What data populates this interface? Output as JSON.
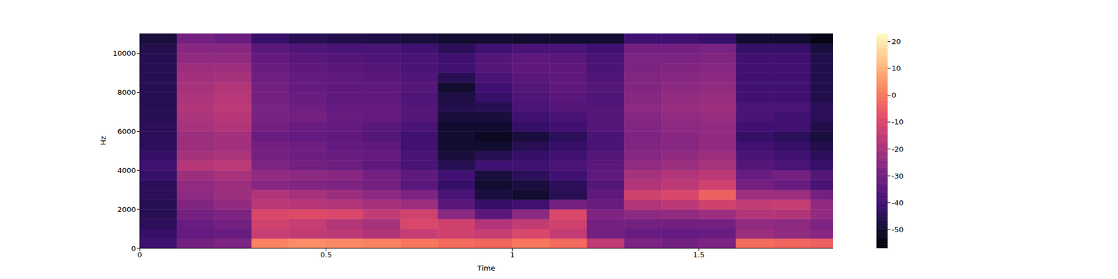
{
  "chart_data": {
    "type": "heatmap",
    "x_label": "Time",
    "y_label": "Hz",
    "xlim": [
      0,
      1.86
    ],
    "xticks": [
      0,
      0.5,
      1,
      1.5
    ],
    "ylim": [
      0,
      11025
    ],
    "yticks": [
      0,
      2000,
      4000,
      6000,
      8000,
      10000
    ],
    "color": "magma",
    "x_bins": [
      0,
      0.1,
      0.2,
      0.3,
      0.4,
      0.5,
      0.6,
      0.7,
      0.8,
      0.9,
      1.0,
      1.1,
      1.2,
      1.3,
      1.4,
      1.5,
      1.6,
      1.7,
      1.8,
      1.9
    ],
    "y_bins": [
      0,
      500,
      1000,
      1500,
      2000,
      2500,
      3000,
      3500,
      4000,
      4500,
      5000,
      5500,
      6000,
      6500,
      7000,
      7500,
      8000,
      8500,
      9000,
      9500,
      10000,
      10500,
      11025
    ],
    "cells": [
      [
        -40,
        -42,
        -44,
        -45,
        -45,
        -44,
        -44,
        -42,
        -40,
        -42,
        -44,
        -44,
        -44,
        -45,
        -45,
        -45,
        -45,
        -45,
        -45,
        -45,
        -46,
        -48
      ],
      [
        -30,
        -33,
        -32,
        -30,
        -27,
        -25,
        -24,
        -22,
        -17,
        -20,
        -22,
        -22,
        -20,
        -19,
        -18,
        -19,
        -20,
        -21,
        -22,
        -24,
        -26,
        -30
      ],
      [
        -28,
        -32,
        -30,
        -28,
        -24,
        -22,
        -22,
        -20,
        -16,
        -19,
        -21,
        -21,
        -18,
        -17,
        -16,
        -17,
        -18,
        -20,
        -22,
        -24,
        -26,
        -32
      ],
      [
        2,
        -14,
        -12,
        -10,
        -16,
        -18,
        -26,
        -24,
        -28,
        -30,
        -30,
        -32,
        -30,
        -29,
        -29,
        -30,
        -30,
        -31,
        -32,
        -33,
        -35,
        -42
      ],
      [
        4,
        -15,
        -14,
        -9,
        -17,
        -20,
        -27,
        -25,
        -30,
        -31,
        -31,
        -33,
        -32,
        -30,
        -31,
        -32,
        -33,
        -33,
        -34,
        -35,
        -37,
        -45
      ],
      [
        3,
        -16,
        -18,
        -10,
        -18,
        -22,
        -28,
        -26,
        -31,
        -32,
        -33,
        -34,
        -33,
        -32,
        -33,
        -34,
        -34,
        -34,
        -35,
        -36,
        -38,
        -46
      ],
      [
        2,
        -18,
        -20,
        -15,
        -20,
        -25,
        -30,
        -30,
        -34,
        -33,
        -34,
        -36,
        -35,
        -33,
        -33,
        -34,
        -34,
        -35,
        -36,
        -37,
        -38,
        -47
      ],
      [
        0,
        -14,
        -10,
        -12,
        -22,
        -28,
        -35,
        -34,
        -38,
        -38,
        -40,
        -40,
        -38,
        -36,
        -36,
        -37,
        -36,
        -37,
        -38,
        -38,
        -40,
        -48
      ],
      [
        -2,
        -12,
        -12,
        -25,
        -35,
        -38,
        -42,
        -40,
        -45,
        -48,
        -50,
        -50,
        -50,
        -48,
        -46,
        -47,
        -50,
        -45,
        -40,
        -40,
        -44,
        -50
      ],
      [
        -3,
        -14,
        -18,
        -35,
        -42,
        -48,
        -50,
        -48,
        -40,
        -45,
        -50,
        -52,
        -50,
        -48,
        -45,
        -42,
        -40,
        -38,
        -36,
        -36,
        -40,
        -50
      ],
      [
        0,
        -10,
        -15,
        -25,
        -40,
        -50,
        -48,
        -44,
        -40,
        -42,
        -45,
        -48,
        -42,
        -40,
        -38,
        -37,
        -36,
        -35,
        -34,
        -34,
        -38,
        -50
      ],
      [
        -2,
        -15,
        -12,
        -10,
        -30,
        -45,
        -44,
        -40,
        -38,
        -40,
        -42,
        -44,
        -40,
        -38,
        -36,
        -35,
        -34,
        -34,
        -34,
        -35,
        -38,
        -50
      ],
      [
        -15,
        -30,
        -30,
        -28,
        -32,
        -34,
        -36,
        -34,
        -35,
        -36,
        -38,
        -38,
        -36,
        -36,
        -36,
        -37,
        -36,
        -37,
        -38,
        -38,
        -40,
        -50
      ],
      [
        -28,
        -32,
        -30,
        -25,
        -18,
        -12,
        -18,
        -20,
        -24,
        -26,
        -27,
        -28,
        -27,
        -26,
        -25,
        -26,
        -27,
        -27,
        -28,
        -28,
        -30,
        -40
      ],
      [
        -30,
        -33,
        -30,
        -24,
        -16,
        -10,
        -16,
        -18,
        -22,
        -24,
        -26,
        -26,
        -25,
        -24,
        -23,
        -24,
        -25,
        -26,
        -27,
        -28,
        -30,
        -40
      ],
      [
        -28,
        -32,
        -30,
        -22,
        -12,
        -4,
        -12,
        -16,
        -20,
        -22,
        -24,
        -24,
        -24,
        -23,
        -22,
        -23,
        -24,
        -25,
        -26,
        -27,
        -29,
        -42
      ],
      [
        -2,
        -22,
        -24,
        -18,
        -15,
        -22,
        -30,
        -32,
        -36,
        -38,
        -40,
        -42,
        -40,
        -38,
        -38,
        -40,
        -40,
        -40,
        -40,
        -40,
        -42,
        -50
      ],
      [
        -3,
        -24,
        -25,
        -18,
        -14,
        -22,
        -32,
        -30,
        -38,
        -40,
        -42,
        -44,
        -40,
        -40,
        -38,
        -40,
        -40,
        -40,
        -40,
        -40,
        -42,
        -50
      ],
      [
        -4,
        -26,
        -28,
        -24,
        -24,
        -30,
        -38,
        -36,
        -42,
        -44,
        -46,
        -48,
        -46,
        -44,
        -44,
        -46,
        -46,
        -46,
        -46,
        -46,
        -48,
        -54
      ]
    ],
    "colorbar": {
      "range": [
        -57,
        23
      ],
      "ticks": [
        -50,
        -40,
        -30,
        -20,
        -10,
        0,
        10,
        20
      ]
    }
  }
}
